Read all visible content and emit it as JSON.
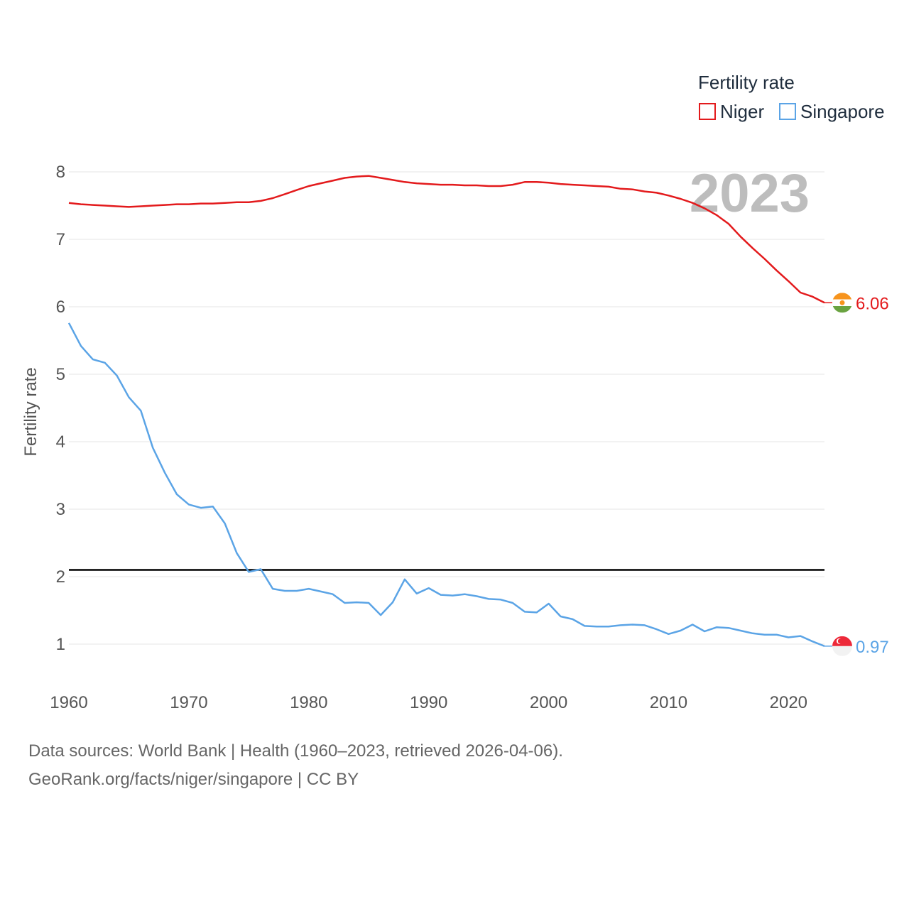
{
  "chart_data": {
    "type": "line",
    "title": "",
    "ylabel": "Fertility rate",
    "xlabel": "",
    "current_year": "2023",
    "xlim": [
      1960,
      2023
    ],
    "ylim": [
      0.5,
      8.5
    ],
    "x_ticks": [
      1960,
      1970,
      1980,
      1990,
      2000,
      2010,
      2020
    ],
    "y_ticks": [
      1,
      2,
      3,
      4,
      5,
      6,
      7,
      8
    ],
    "reference_line": 2.1,
    "legend": {
      "title": "Fertility rate",
      "placement": "top-right"
    },
    "x": [
      1960,
      1961,
      1962,
      1963,
      1964,
      1965,
      1966,
      1967,
      1968,
      1969,
      1970,
      1971,
      1972,
      1973,
      1974,
      1975,
      1976,
      1977,
      1978,
      1979,
      1980,
      1981,
      1982,
      1983,
      1984,
      1985,
      1986,
      1987,
      1988,
      1989,
      1990,
      1991,
      1992,
      1993,
      1994,
      1995,
      1996,
      1997,
      1998,
      1999,
      2000,
      2001,
      2002,
      2003,
      2004,
      2005,
      2006,
      2007,
      2008,
      2009,
      2010,
      2011,
      2012,
      2013,
      2014,
      2015,
      2016,
      2017,
      2018,
      2019,
      2020,
      2021,
      2022,
      2023
    ],
    "series": [
      {
        "name": "Niger",
        "color": "#e31a1c",
        "end_label": "6.06",
        "flag": "niger-flag-icon",
        "values": [
          7.54,
          7.52,
          7.51,
          7.5,
          7.49,
          7.48,
          7.49,
          7.5,
          7.51,
          7.52,
          7.52,
          7.53,
          7.53,
          7.54,
          7.55,
          7.55,
          7.57,
          7.61,
          7.67,
          7.73,
          7.79,
          7.83,
          7.87,
          7.91,
          7.93,
          7.94,
          7.91,
          7.88,
          7.85,
          7.83,
          7.82,
          7.81,
          7.81,
          7.8,
          7.8,
          7.79,
          7.79,
          7.81,
          7.85,
          7.85,
          7.84,
          7.82,
          7.81,
          7.8,
          7.79,
          7.78,
          7.75,
          7.74,
          7.71,
          7.69,
          7.65,
          7.6,
          7.54,
          7.46,
          7.36,
          7.23,
          7.04,
          6.87,
          6.71,
          6.54,
          6.38,
          6.21,
          6.15,
          6.06
        ]
      },
      {
        "name": "Singapore",
        "color": "#5ba4e6",
        "end_label": "0.97",
        "flag": "singapore-flag-icon",
        "values": [
          5.76,
          5.42,
          5.22,
          5.17,
          4.98,
          4.66,
          4.46,
          3.91,
          3.54,
          3.22,
          3.07,
          3.02,
          3.04,
          2.79,
          2.35,
          2.07,
          2.11,
          1.82,
          1.79,
          1.79,
          1.82,
          1.78,
          1.74,
          1.61,
          1.62,
          1.61,
          1.43,
          1.62,
          1.96,
          1.75,
          1.83,
          1.73,
          1.72,
          1.74,
          1.71,
          1.67,
          1.66,
          1.61,
          1.48,
          1.47,
          1.6,
          1.41,
          1.37,
          1.27,
          1.26,
          1.26,
          1.28,
          1.29,
          1.28,
          1.22,
          1.15,
          1.2,
          1.29,
          1.19,
          1.25,
          1.24,
          1.2,
          1.16,
          1.14,
          1.14,
          1.1,
          1.12,
          1.04,
          0.97
        ]
      }
    ]
  },
  "footer": {
    "line1": "Data sources: World Bank | Health (1960–2023, retrieved 2026-04-06).",
    "line2": "GeoRank.org/facts/niger/singapore | CC BY"
  }
}
